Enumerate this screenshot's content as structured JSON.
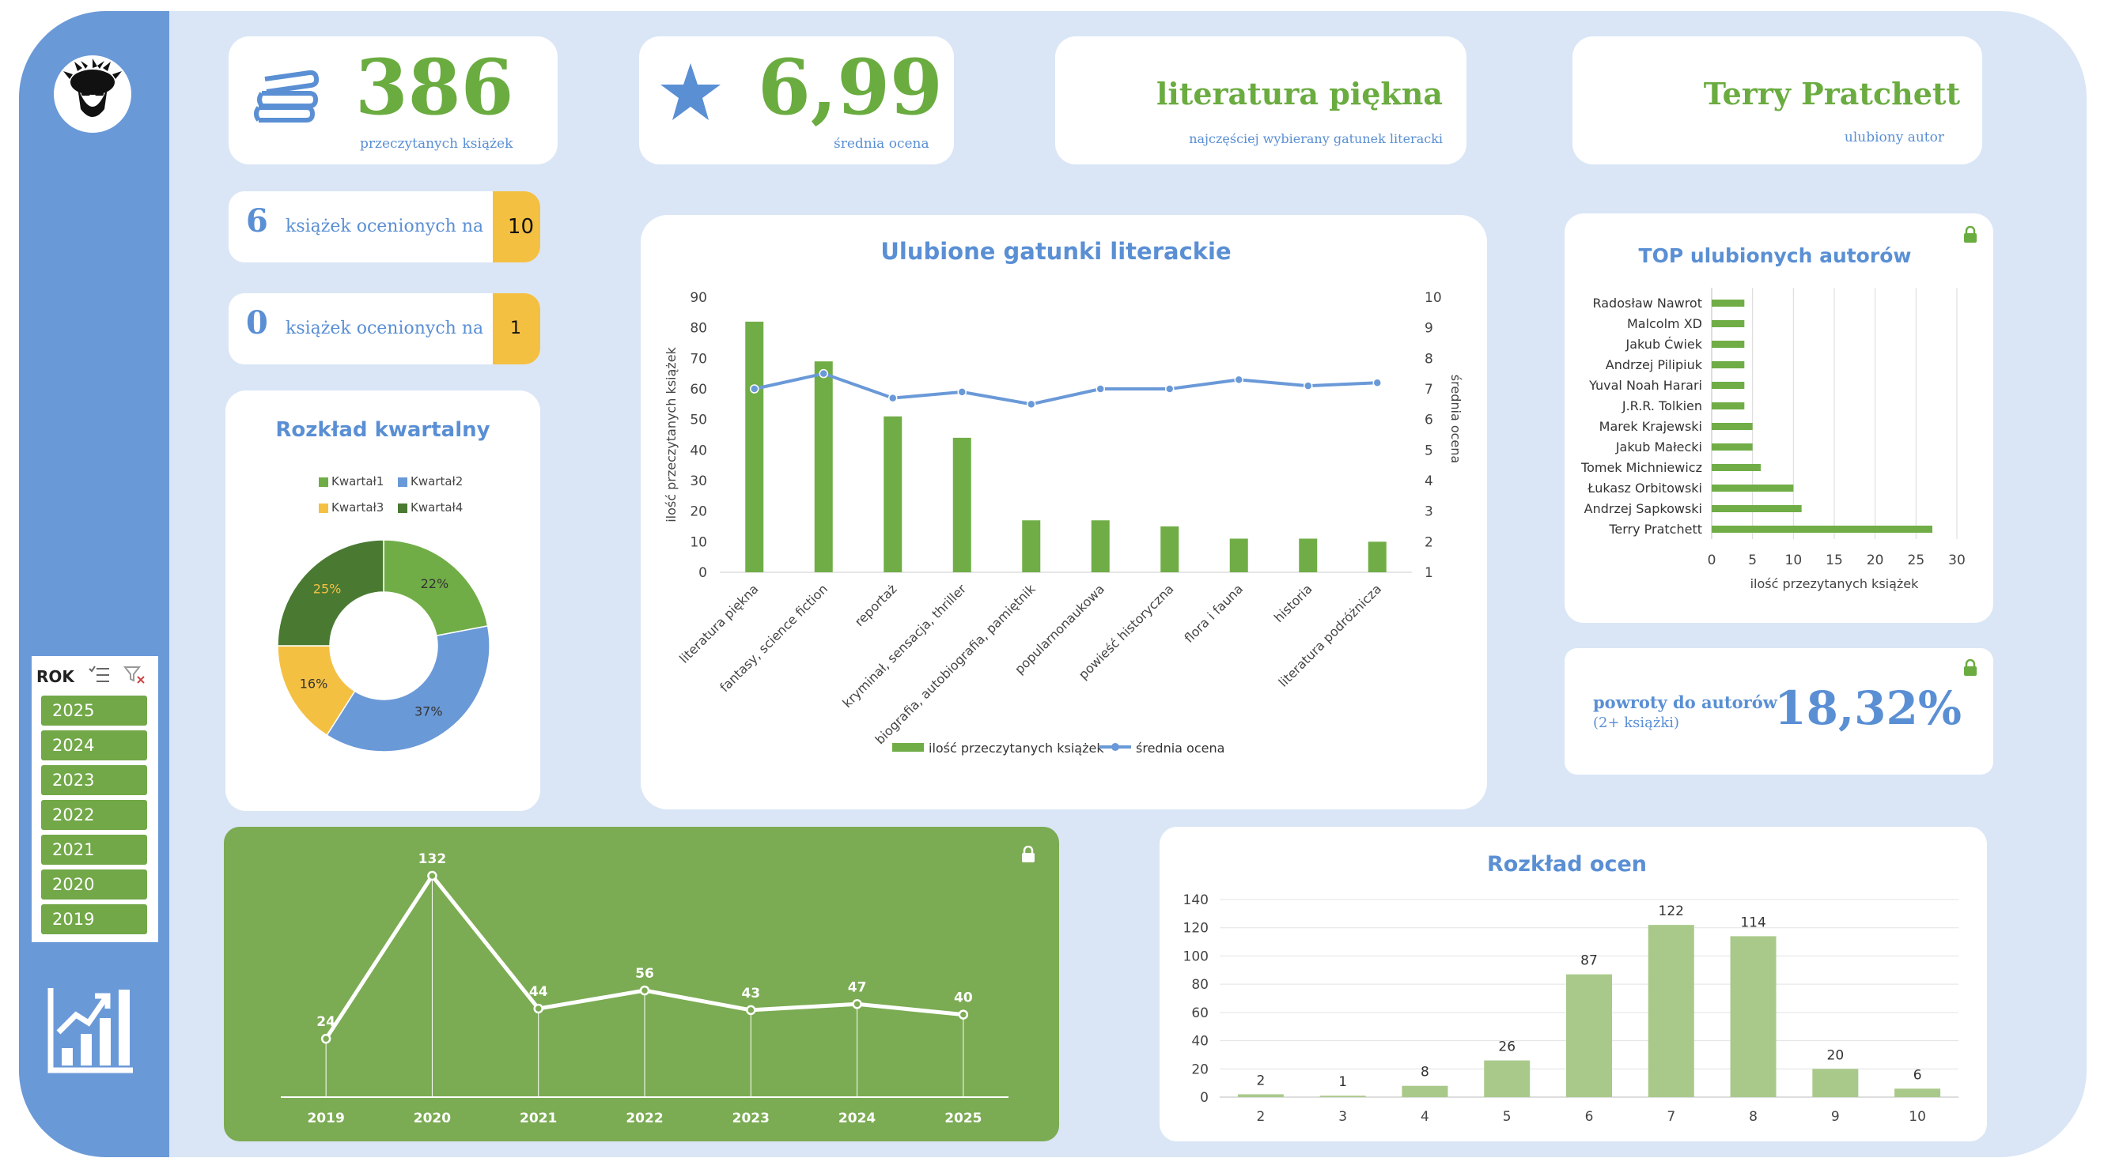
{
  "kpi": {
    "books_count": "386",
    "books_label": "przeczytanych książek",
    "avg_rating": "6,99",
    "avg_label": "średnia ocena",
    "top_genre": "literatura piękna",
    "top_genre_label": "najczęściej wybierany gatunek literacki",
    "top_author": "Terry Pratchett",
    "top_author_label": "ulubiony autor"
  },
  "rated": {
    "high_count": "6",
    "high_text": "książek ocenionych na",
    "high_value": "10",
    "low_count": "0",
    "low_text": "książek ocenionych na",
    "low_value": "1"
  },
  "slicer": {
    "title": "ROK",
    "years": [
      "2025",
      "2024",
      "2023",
      "2022",
      "2021",
      "2020",
      "2019"
    ]
  },
  "returns": {
    "label": "powroty do autorów",
    "sublabel": "(2+ książki)",
    "value": "18,32%"
  },
  "colors": {
    "green": "#6aac40",
    "blue": "#5a8fd4",
    "yellow": "#f4c042",
    "dark_green": "#4a7a32",
    "sidebar": "#6a99d8"
  },
  "icons": [
    "avatar-icon",
    "books-icon",
    "star-icon",
    "lock-icon",
    "multiselect-icon",
    "clear-filter-icon",
    "chart-logo-icon"
  ],
  "chart_data": [
    {
      "type": "pie",
      "title": "Rozkład kwartalny",
      "categories": [
        "Kwartał1",
        "Kwartał2",
        "Kwartał3",
        "Kwartał4"
      ],
      "values": [
        22,
        37,
        16,
        25
      ],
      "value_labels": [
        "22%",
        "37%",
        "16%",
        "25%"
      ],
      "colors": [
        "#70ad47",
        "#6a99d8",
        "#f4c042",
        "#4a7a32"
      ],
      "legend": "top"
    },
    {
      "type": "bar",
      "title": "Ulubione gatunki literackie",
      "categories": [
        "literatura piękna",
        "fantasy, science fiction",
        "reportaż",
        "kryminał, sensacja, thriller",
        "biografia, autobiografia, pamiętnik",
        "popularnonaukowa",
        "powieść historyczna",
        "flora i fauna",
        "historia",
        "literatura podróżnicza"
      ],
      "series": [
        {
          "name": "ilość przeczytanych książek",
          "type": "bar",
          "values": [
            82,
            69,
            51,
            44,
            17,
            17,
            15,
            11,
            11,
            10
          ]
        },
        {
          "name": "średnia ocena",
          "type": "line",
          "axis": "right",
          "values": [
            7.0,
            7.5,
            6.7,
            6.9,
            6.5,
            7.0,
            7.0,
            7.3,
            7.1,
            7.2
          ]
        }
      ],
      "ylabel": "ilość przeczytanych książek",
      "y2label": "średnia ocena",
      "ylim": [
        0,
        90
      ],
      "y2lim": [
        1,
        10
      ],
      "yticks": [
        "0",
        "10",
        "20",
        "30",
        "40",
        "50",
        "60",
        "70",
        "80",
        "90"
      ],
      "y2ticks": [
        "1",
        "2",
        "3",
        "4",
        "5",
        "6",
        "7",
        "8",
        "9",
        "10"
      ],
      "legend": "bottom",
      "grid": false
    },
    {
      "type": "bar",
      "title": "TOP ulubionych autorów",
      "orientation": "horizontal",
      "categories": [
        "Radosław Nawrot",
        "Malcolm XD",
        "Jakub Ćwiek",
        "Andrzej Pilipiuk",
        "Yuval Noah Harari",
        "J.R.R. Tolkien",
        "Marek Krajewski",
        "Jakub Małecki",
        "Tomek Michniewicz",
        "Łukasz Orbitowski",
        "Andrzej Sapkowski",
        "Terry Pratchett"
      ],
      "values": [
        4,
        4,
        4,
        4,
        4,
        4,
        5,
        5,
        6,
        10,
        11,
        27
      ],
      "xlabel": "ilość przezytanych książek",
      "xlim": [
        0,
        30
      ],
      "xticks": [
        "0",
        "5",
        "10",
        "15",
        "20",
        "25",
        "30"
      ],
      "grid": true
    },
    {
      "type": "line",
      "x": [
        "2019",
        "2020",
        "2021",
        "2022",
        "2023",
        "2024",
        "2025"
      ],
      "values": [
        24,
        132,
        44,
        56,
        43,
        47,
        40
      ],
      "value_labels": [
        "24",
        "132",
        "44",
        "56",
        "43",
        "47",
        "40"
      ]
    },
    {
      "type": "bar",
      "title": "Rozkład ocen",
      "categories": [
        "2",
        "3",
        "4",
        "5",
        "6",
        "7",
        "8",
        "9",
        "10"
      ],
      "values": [
        2,
        1,
        8,
        26,
        87,
        122,
        114,
        20,
        6
      ],
      "value_labels": [
        "2",
        "1",
        "8",
        "26",
        "87",
        "122",
        "114",
        "20",
        "6"
      ],
      "ylim": [
        0,
        140
      ],
      "yticks": [
        "0",
        "20",
        "40",
        "60",
        "80",
        "100",
        "120",
        "140"
      ],
      "grid": true
    }
  ]
}
